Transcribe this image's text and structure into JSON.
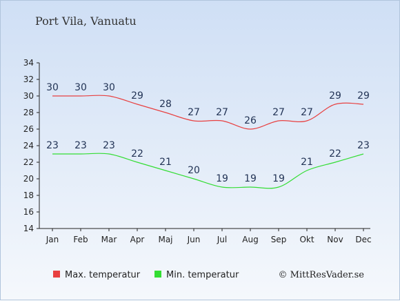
{
  "chart_data": {
    "type": "line",
    "title": "Port Vila, Vanuatu",
    "categories": [
      "Jan",
      "Feb",
      "Mar",
      "Apr",
      "Maj",
      "Jun",
      "Jul",
      "Aug",
      "Sep",
      "Okt",
      "Nov",
      "Dec"
    ],
    "series": [
      {
        "name": "Max. temperatur",
        "color": "#e84040",
        "values": [
          30,
          30,
          30,
          29,
          28,
          27,
          27,
          26,
          27,
          27,
          29,
          29
        ]
      },
      {
        "name": "Min. temperatur",
        "color": "#33dd33",
        "values": [
          23,
          23,
          23,
          22,
          21,
          20,
          19,
          19,
          19,
          21,
          22,
          23
        ]
      }
    ],
    "ylim": [
      14,
      34
    ],
    "yticks": [
      14,
      16,
      18,
      20,
      22,
      24,
      26,
      28,
      30,
      32,
      34
    ],
    "xlabel": "",
    "ylabel": "",
    "grid": false,
    "legend_position": "bottom-left",
    "credit": "© MittResVader.se"
  }
}
